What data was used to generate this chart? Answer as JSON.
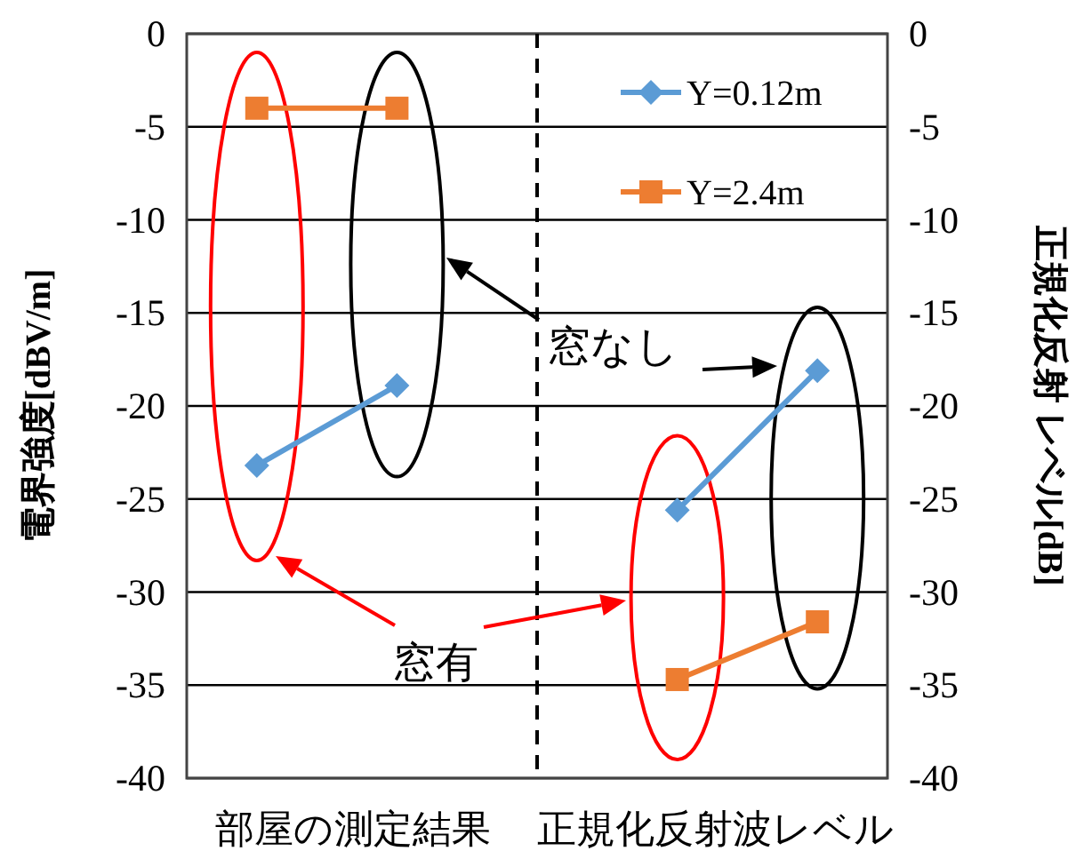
{
  "chart_data": {
    "type": "line",
    "ylabel": "電界強度[dBV/m]",
    "y2label": "正規化反射 レベル[dB]",
    "categories": [
      null,
      null,
      null,
      null,
      null
    ],
    "series": [
      {
        "name": "Y=0.12m",
        "color": "#5b9bd5",
        "marker": "diamond",
        "values": [
          -23.2,
          -18.9,
          null,
          -25.6,
          -18.1
        ]
      },
      {
        "name": "Y=2.4m",
        "color": "#ed7d31",
        "marker": "square",
        "values": [
          -4,
          -4,
          null,
          -34.7,
          -31.6
        ]
      }
    ],
    "ylim": [
      -40,
      0
    ],
    "yticks": [
      0,
      -5,
      -10,
      -15,
      -20,
      -25,
      -30,
      -35,
      -40
    ],
    "y2lim": [
      -40,
      0
    ],
    "y2ticks": [
      0,
      -5,
      -10,
      -15,
      -20,
      -25,
      -30,
      -35,
      -40
    ],
    "grid": "y",
    "legend": "top right",
    "annotations": [
      "部屋の測定結果",
      "正規化反射波レベル",
      "窓なし",
      "窓有"
    ]
  }
}
